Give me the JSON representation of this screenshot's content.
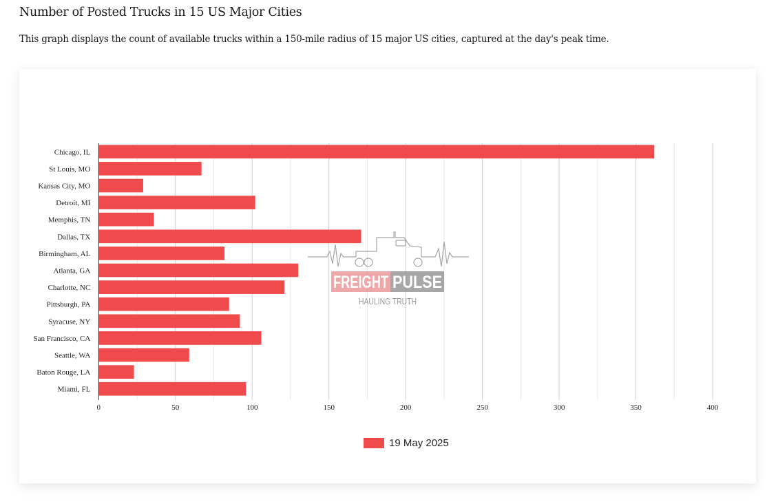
{
  "header": {
    "title": "Number of Posted Trucks in 15 US Major Cities",
    "description": "This graph displays the count of available trucks within a 150-mile radius of 15 major US cities, captured at the day's peak time."
  },
  "watermark": {
    "brand_left": "FREIGHT",
    "brand_right": "PULSE",
    "tagline": "HAULING TRUTH",
    "left_color": "#e88a8c",
    "right_color": "#8a8a8a",
    "icon": "truck-heartbeat-icon"
  },
  "chart_data": {
    "type": "bar",
    "orientation": "horizontal",
    "title": "",
    "xlabel": "",
    "ylabel": "",
    "categories": [
      "Chicago, IL",
      "St Louis, MO",
      "Kansas City, MO",
      "Detroit, MI",
      "Memphis, TN",
      "Dallas, TX",
      "Birmingham, AL",
      "Atlanta, GA",
      "Charlotte, NC",
      "Pittsburgh, PA",
      "Syracuse, NY",
      "San Francisco, CA",
      "Seattle, WA",
      "Baton Rouge, LA",
      "Miami, FL"
    ],
    "series": [
      {
        "name": "19 May 2025",
        "color": "#ef4a4c",
        "values": [
          362,
          67,
          29,
          102,
          36,
          171,
          82,
          130,
          121,
          85,
          92,
          106,
          59,
          23,
          96
        ]
      }
    ],
    "xlim": [
      0,
      400
    ],
    "xticks": [
      0,
      50,
      100,
      150,
      200,
      250,
      300,
      350,
      400
    ],
    "minor_grid_step": 25,
    "grid": true,
    "legend_position": "bottom-center"
  }
}
